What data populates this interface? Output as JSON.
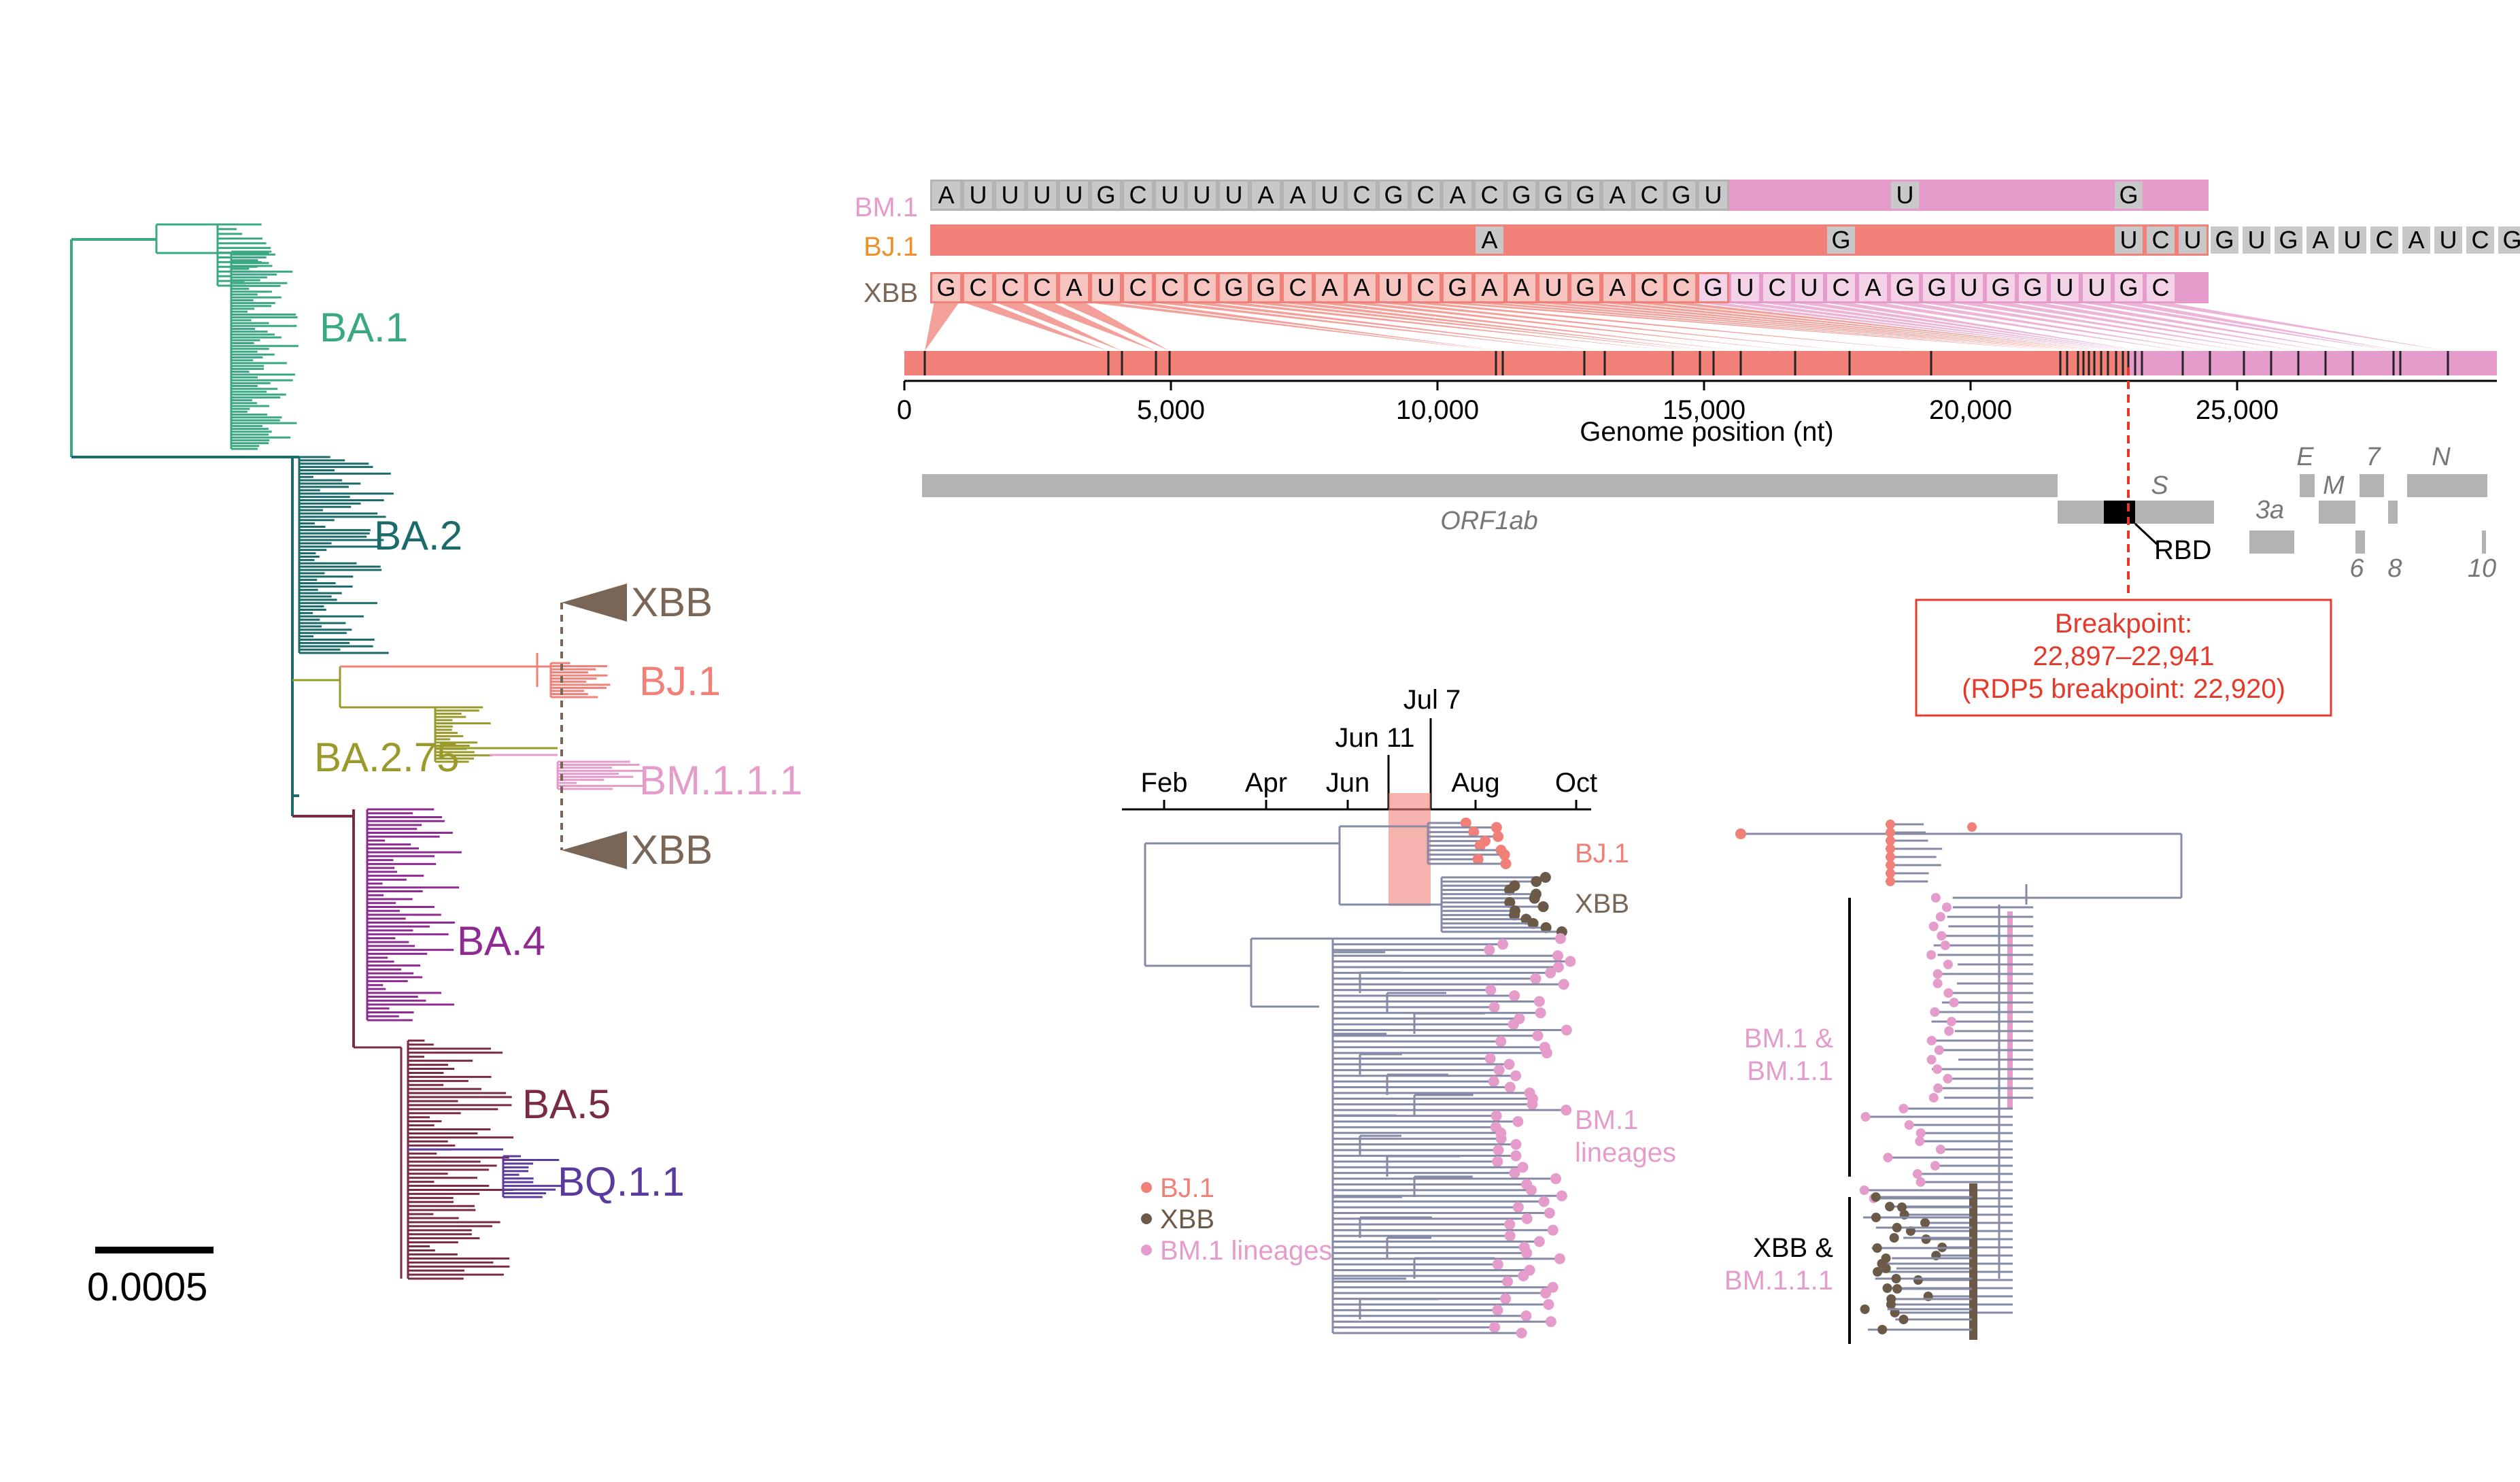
{
  "colors": {
    "ba1": "#3aa883",
    "ba2": "#1c6b6b",
    "ba275": "#9a9a2c",
    "bj1": "#f08078",
    "bm111": "#e59ccb",
    "xbb": "#7a6656",
    "ba4": "#8e2a92",
    "ba5": "#7a2a45",
    "bq11": "#5a3a9c",
    "red": "#e53a2b",
    "grey": "#b3b3b3",
    "tree": "#858aa6"
  },
  "phylogeny": {
    "clades": [
      "BA.1",
      "BA.2",
      "XBB",
      "BJ.1",
      "BA.2.75",
      "BM.1.1.1",
      "XBB",
      "BA.4",
      "BA.5",
      "BQ.1.1"
    ],
    "scale_bar": "0.0005"
  },
  "alignment": {
    "rows": [
      {
        "label": "BM.1",
        "seq": "AUUUUGCUUUAAUCGCACGGGACGU     U      G  "
      },
      {
        "label": "BJ.1",
        "seq": "                 A          G        UCUGUGAUCAUCGUU"
      },
      {
        "label": "XBB",
        "seq": "GCCCAUCCCGGCAAUCGAAUGACCGUCUCAGGUGGUUGC"
      }
    ]
  },
  "genome": {
    "ticks": [
      "0",
      "5,000",
      "10,000",
      "15,000",
      "20,000",
      "25,000"
    ],
    "axis_label": "Genome position (nt)",
    "genes": [
      {
        "name": "ORF1ab"
      },
      {
        "name": "S"
      },
      {
        "name": "3a"
      },
      {
        "name": "E"
      },
      {
        "name": "M"
      },
      {
        "name": "7"
      },
      {
        "name": "N"
      },
      {
        "name": "6"
      },
      {
        "name": "8"
      },
      {
        "name": "10"
      },
      {
        "name": "RBD"
      }
    ],
    "breakpoint": {
      "title": "Breakpoint:",
      "range": "22,897–22,941",
      "rdp": "(RDP5 breakpoint: 22,920)"
    }
  },
  "timetree": {
    "months": [
      "Feb",
      "Apr",
      "Jun",
      "Aug",
      "Oct"
    ],
    "markers": [
      "Jun 11",
      "Jul 7"
    ],
    "clade_labels": {
      "bj1": "BJ.1",
      "xbb": "XBB",
      "bm1_line1": "BM.1",
      "bm1_line2": "lineages"
    },
    "legend": [
      "BJ.1",
      "XBB",
      "BM.1 lineages"
    ]
  },
  "righttree": {
    "labels": {
      "bm_a": "BM.1 &",
      "bm_b": "BM.1.1",
      "xbb_a": "XBB &",
      "xbb_b": "BM.1.1.1"
    }
  }
}
